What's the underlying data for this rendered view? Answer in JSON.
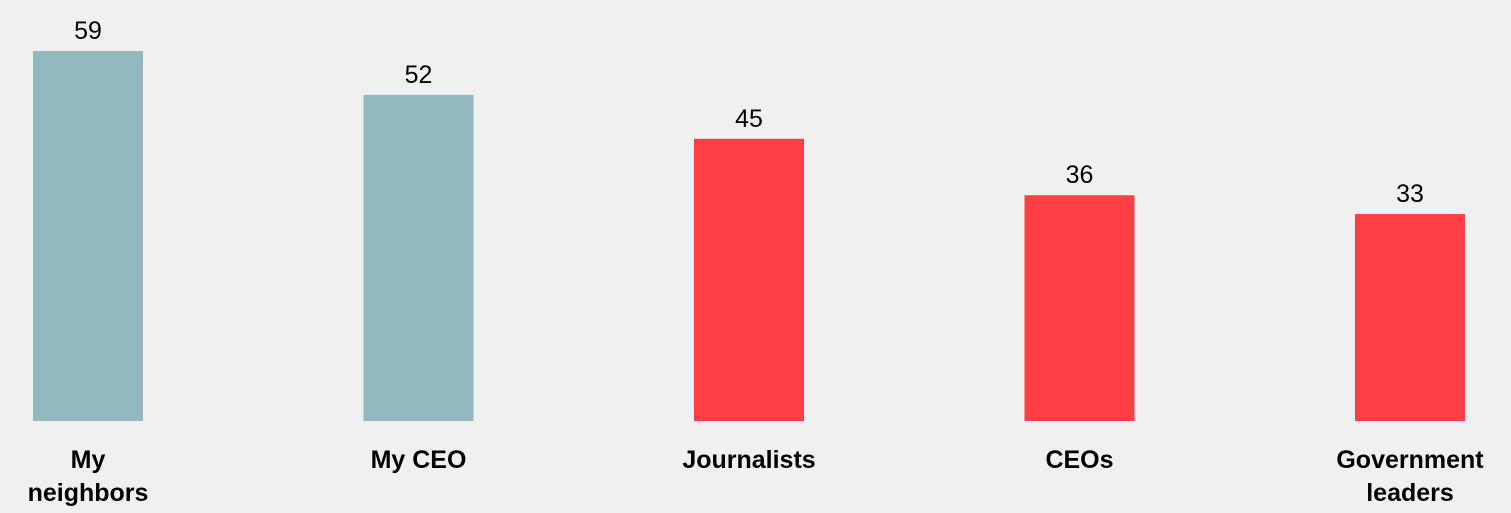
{
  "chart_data": {
    "type": "bar",
    "categories": [
      "My\nneighbors",
      "My CEO",
      "Journalists",
      "CEOs",
      "Government\nleaders"
    ],
    "values": [
      59,
      52,
      45,
      36,
      33
    ],
    "ylim": [
      0,
      59
    ],
    "grid": false,
    "legend": "none",
    "bar_colors": [
      "#93b9c0",
      "#93b9c0",
      "#ff3f44",
      "#ff3f44",
      "#ff3f44"
    ],
    "label_color": "#000000",
    "background": "#f0f0f0"
  }
}
